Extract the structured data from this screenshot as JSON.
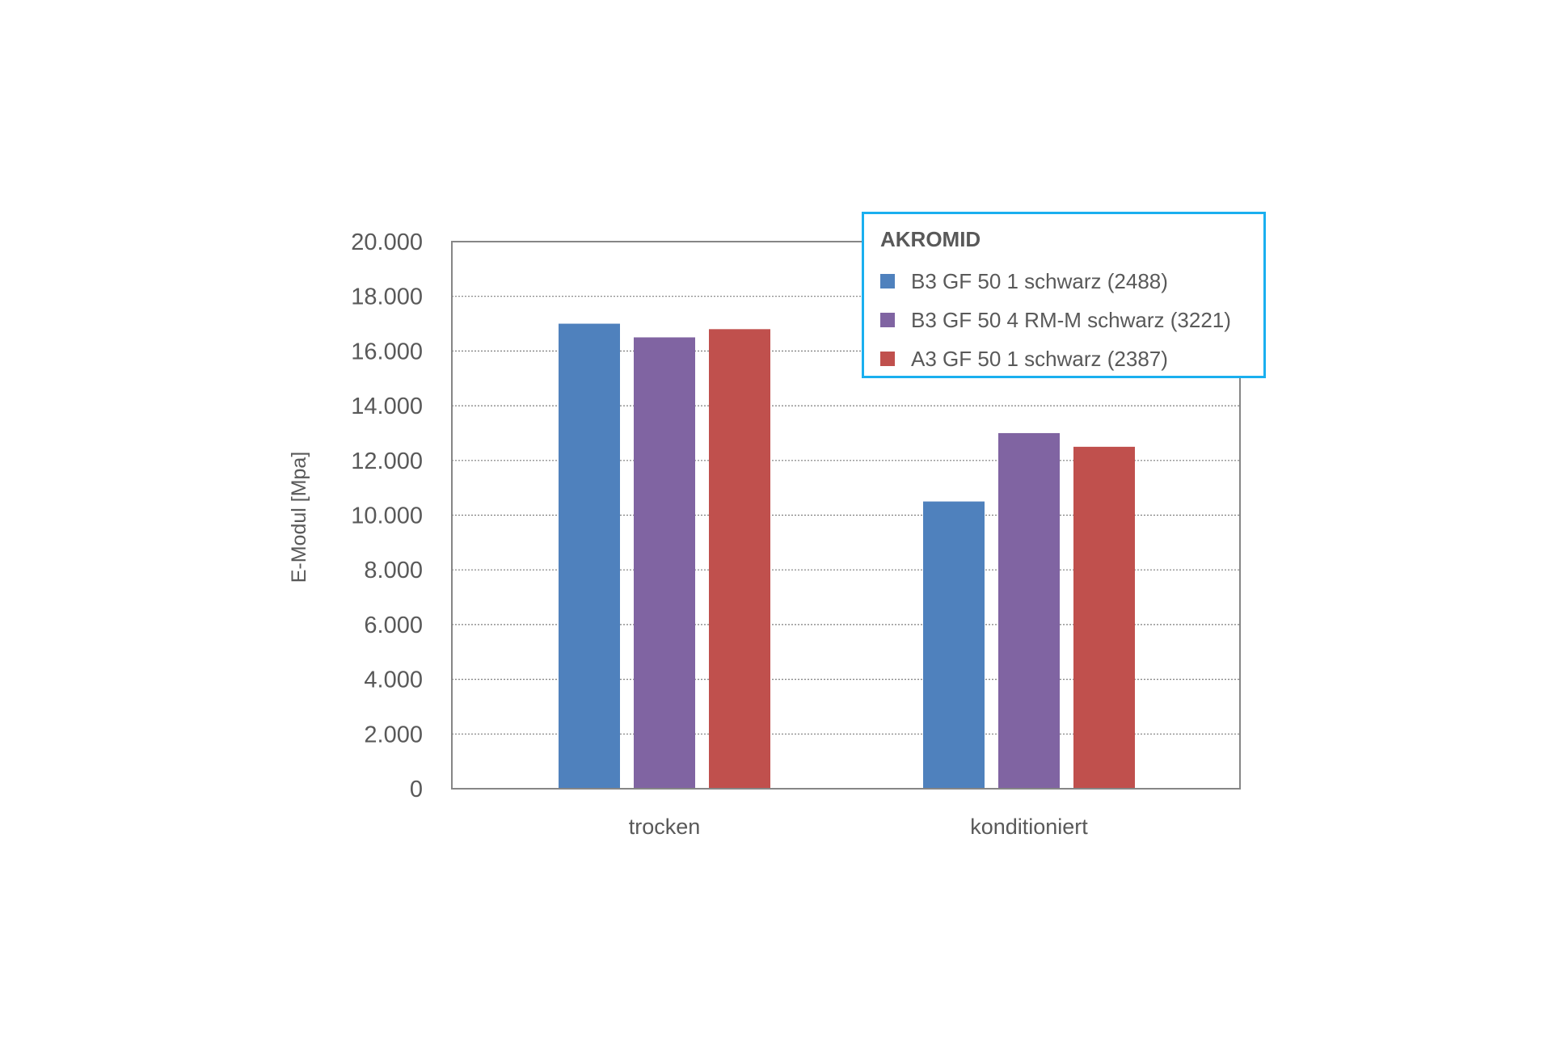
{
  "chart_data": {
    "type": "bar",
    "title": "",
    "xlabel": "",
    "ylabel": "E-Modul [Mpa]",
    "ylim": [
      0,
      20000
    ],
    "yticks": [
      "0",
      "2.000",
      "4.000",
      "6.000",
      "8.000",
      "10.000",
      "12.000",
      "14.000",
      "16.000",
      "18.000",
      "20.000"
    ],
    "ytick_values": [
      0,
      2000,
      4000,
      6000,
      8000,
      10000,
      12000,
      14000,
      16000,
      18000,
      20000
    ],
    "grid": "horizontal dotted",
    "categories": [
      "trocken",
      "konditioniert"
    ],
    "legend": {
      "title": "AKROMID",
      "placement": "top-right",
      "border_color": "#1AAFEF"
    },
    "series": [
      {
        "name": "B3 GF 50 1 schwarz (2488)",
        "color": "#4F81BD",
        "values": [
          17000,
          10500
        ]
      },
      {
        "name": "B3 GF 50 4 RM-M schwarz (3221)",
        "color": "#8064A2",
        "values": [
          16500,
          13000
        ]
      },
      {
        "name": "A3 GF 50 1 schwarz (2387)",
        "color": "#C0504D",
        "values": [
          16800,
          12500
        ]
      }
    ]
  }
}
